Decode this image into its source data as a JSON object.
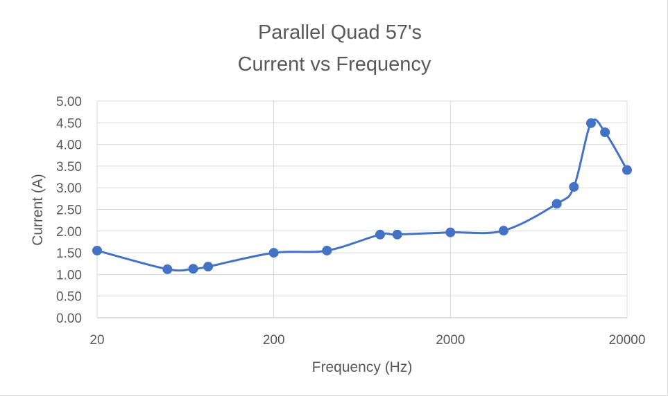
{
  "chart_data": {
    "type": "scatter",
    "title_lines": [
      "Parallel Quad 57's",
      "Current vs Frequency"
    ],
    "xlabel": "Frequency (Hz)",
    "ylabel": "Current (A)",
    "x_scale": "log",
    "xlim": [
      20,
      20000
    ],
    "ylim": [
      0,
      5
    ],
    "x_ticks": [
      20,
      200,
      2000,
      20000
    ],
    "x_tick_labels": [
      "20",
      "200",
      "2000",
      "20000"
    ],
    "y_ticks": [
      0,
      0.5,
      1,
      1.5,
      2,
      2.5,
      3,
      3.5,
      4,
      4.5,
      5
    ],
    "y_tick_labels": [
      "0.00",
      "0.50",
      "1.00",
      "1.50",
      "2.00",
      "2.50",
      "3.00",
      "3.50",
      "4.00",
      "4.50",
      "5.00"
    ],
    "grid": true,
    "smooth_line": true,
    "series_color": "#4472C4",
    "series": [
      {
        "name": "Current",
        "x": [
          20,
          50,
          70,
          85,
          200,
          400,
          800,
          1000,
          2000,
          4000,
          8000,
          10000,
          12500,
          15000,
          20000
        ],
        "y": [
          1.55,
          1.12,
          1.13,
          1.18,
          1.5,
          1.55,
          1.92,
          1.92,
          1.97,
          2.01,
          2.63,
          3.02,
          4.49,
          4.28,
          3.41
        ]
      }
    ]
  }
}
